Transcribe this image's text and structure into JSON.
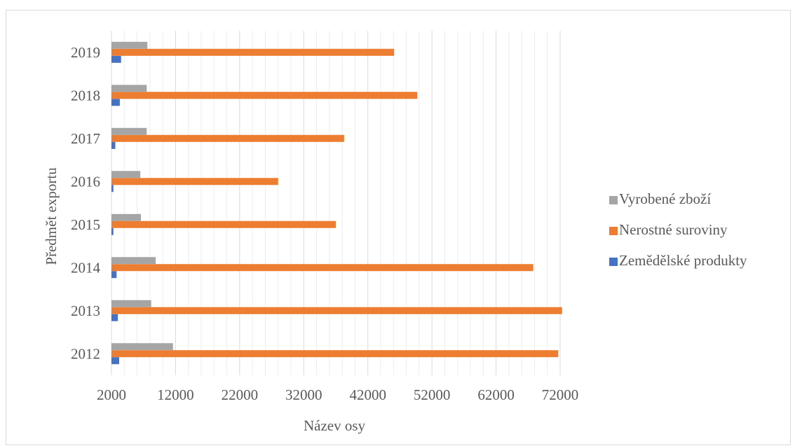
{
  "chart_data": {
    "type": "bar",
    "orientation": "horizontal",
    "categories": [
      "2012",
      "2013",
      "2014",
      "2015",
      "2016",
      "2017",
      "2018",
      "2019"
    ],
    "series": [
      {
        "name": "Zemědělské produkty",
        "color": "#4472c4",
        "values": [
          3200,
          3000,
          2800,
          2300,
          2300,
          2600,
          3300,
          3500
        ]
      },
      {
        "name": "Nerostné suroviny",
        "color": "#ed7d31",
        "values": [
          71700,
          72300,
          67800,
          37000,
          28000,
          38300,
          49700,
          46100
        ]
      },
      {
        "name": "Vyrobené zboží",
        "color": "#a5a5a5",
        "values": [
          11600,
          8200,
          8900,
          6600,
          6500,
          7500,
          7500,
          7600
        ]
      }
    ],
    "legend_order": [
      "Vyrobené zboží",
      "Nerostné suroviny",
      "Zemědělské produkty"
    ],
    "xlim": [
      2000,
      72000
    ],
    "xticks": [
      "2000",
      "12000",
      "22000",
      "32000",
      "42000",
      "52000",
      "62000",
      "72000"
    ],
    "xlabel": "Název osy",
    "ylabel": "Předmět exportu",
    "title": "",
    "grid": "vertical major and minor",
    "legend_position": "right"
  }
}
